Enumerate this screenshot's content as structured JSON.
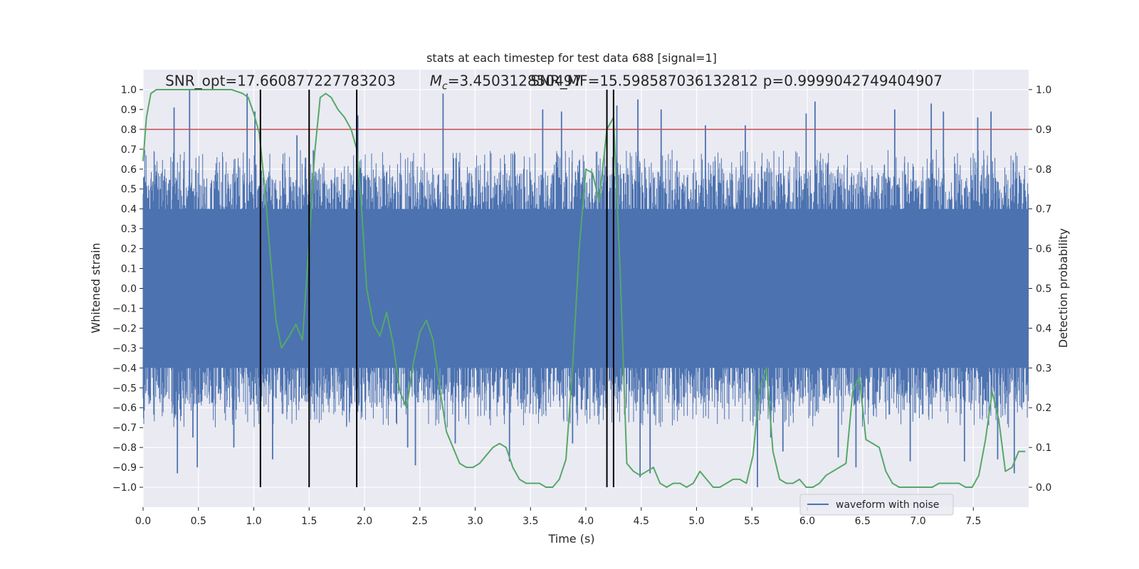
{
  "chart_data": {
    "type": "line",
    "title": "stats at each timestep for test data 688 [signal=1]",
    "xlabel": "Time (s)",
    "ylabel": "Whitened strain",
    "y2label": "Detection probability",
    "xlim": [
      0.0,
      8.0
    ],
    "ylim": [
      -1.1,
      1.1
    ],
    "y2lim": [
      -0.05,
      1.05
    ],
    "x_ticks": [
      0.0,
      0.5,
      1.0,
      1.5,
      2.0,
      2.5,
      3.0,
      3.5,
      4.0,
      4.5,
      5.0,
      5.5,
      6.0,
      6.5,
      7.0,
      7.5
    ],
    "x_tick_labels": [
      "0.0",
      "0.5",
      "1.0",
      "1.5",
      "2.0",
      "2.5",
      "3.0",
      "3.5",
      "4.0",
      "4.5",
      "5.0",
      "5.5",
      "6.0",
      "6.5",
      "7.0",
      "7.5"
    ],
    "y_ticks": [
      1.0,
      0.9,
      0.8,
      0.7,
      0.6,
      0.5,
      0.4,
      0.3,
      0.2,
      0.1,
      0.0,
      -0.1,
      -0.2,
      -0.3,
      -0.4,
      -0.5,
      -0.6,
      -0.7,
      -0.8,
      -0.9,
      -1.0
    ],
    "y_tick_labels": [
      "1.0",
      "0.9",
      "0.8",
      "0.7",
      "0.6",
      "0.5",
      "0.4",
      "0.3",
      "0.2",
      "0.1",
      "0.0",
      "−0.1",
      "−0.2",
      "−0.3",
      "−0.4",
      "−0.5",
      "−0.6",
      "−0.7",
      "−0.8",
      "−0.9",
      "−1.0"
    ],
    "y2_ticks": [
      1.0,
      0.9,
      0.8,
      0.7,
      0.6,
      0.5,
      0.4,
      0.3,
      0.2,
      0.1,
      0.0
    ],
    "y2_tick_labels": [
      "1.0",
      "0.9",
      "0.8",
      "0.7",
      "0.6",
      "0.5",
      "0.4",
      "0.3",
      "0.2",
      "0.1",
      "0.0"
    ],
    "grid": true,
    "legend": {
      "placement": "lower-right",
      "entries": [
        "waveform with noise"
      ]
    },
    "threshold": {
      "axis": "y2",
      "value": 0.9,
      "color": "#c44e52"
    },
    "vlines": [
      1.06,
      1.5,
      1.93,
      4.19,
      4.25
    ],
    "vline_range": [
      -1.0,
      1.0
    ],
    "annotations": [
      {
        "text": "SNR_opt=17.660877227783203",
        "x": 0.2,
        "y": 1.02
      },
      {
        "text": "=3.450312850497",
        "x": 2.59,
        "y": 1.02,
        "math_prefix": "M",
        "math_sub": "c"
      },
      {
        "text": "SNR_MF=15.598587036132812",
        "x": 3.5,
        "y": 1.02
      },
      {
        "text": "p=0.9999042749404907",
        "x": 5.6,
        "y": 1.02
      }
    ],
    "series": [
      {
        "name": "waveform with noise",
        "axis": "y",
        "color": "#4c72b0",
        "style": "dense-noise",
        "duration": 8.0,
        "dense_band": [
          -0.4,
          0.4
        ],
        "typical_spike_range": [
          -0.7,
          0.7
        ],
        "max": 1.0,
        "min": -1.0,
        "spikes": [
          [
            0.28,
            0.91
          ],
          [
            0.42,
            1.0
          ],
          [
            0.45,
            -0.75
          ],
          [
            0.31,
            -0.93
          ],
          [
            0.49,
            -0.9
          ],
          [
            0.82,
            -0.8
          ],
          [
            0.94,
            0.98
          ],
          [
            1.01,
            0.89
          ],
          [
            1.17,
            -0.86
          ],
          [
            1.39,
            0.77
          ],
          [
            1.94,
            0.87
          ],
          [
            2.39,
            -0.8
          ],
          [
            2.46,
            -0.89
          ],
          [
            2.71,
            0.98
          ],
          [
            2.82,
            -0.78
          ],
          [
            3.31,
            -0.87
          ],
          [
            3.61,
            0.9
          ],
          [
            3.78,
            0.89
          ],
          [
            3.88,
            -0.78
          ],
          [
            4.28,
            0.92
          ],
          [
            4.47,
            0.95
          ],
          [
            4.49,
            -0.95
          ],
          [
            4.58,
            -0.93
          ],
          [
            4.68,
            0.9
          ],
          [
            5.08,
            0.82
          ],
          [
            5.44,
            0.82
          ],
          [
            5.55,
            -1.0
          ],
          [
            5.67,
            -0.75
          ],
          [
            5.78,
            -0.82
          ],
          [
            5.99,
            0.88
          ],
          [
            6.07,
            0.94
          ],
          [
            6.28,
            -0.85
          ],
          [
            6.44,
            -0.9
          ],
          [
            6.79,
            0.9
          ],
          [
            6.93,
            -0.87
          ],
          [
            7.12,
            0.93
          ],
          [
            7.23,
            0.89
          ],
          [
            7.42,
            -0.87
          ],
          [
            7.54,
            0.86
          ],
          [
            7.66,
            0.89
          ],
          [
            7.72,
            -0.86
          ],
          [
            7.87,
            -0.93
          ]
        ]
      },
      {
        "name": "",
        "axis": "y2",
        "color": "#55a868",
        "x": [
          0.0,
          0.03,
          0.07,
          0.12,
          0.2,
          0.3,
          0.4,
          0.5,
          0.6,
          0.7,
          0.8,
          0.9,
          0.95,
          1.0,
          1.05,
          1.1,
          1.15,
          1.2,
          1.25,
          1.32,
          1.38,
          1.44,
          1.5,
          1.55,
          1.6,
          1.65,
          1.7,
          1.76,
          1.82,
          1.88,
          1.93,
          1.97,
          2.02,
          2.08,
          2.14,
          2.2,
          2.26,
          2.32,
          2.38,
          2.44,
          2.5,
          2.56,
          2.62,
          2.68,
          2.74,
          2.8,
          2.86,
          2.92,
          2.98,
          3.04,
          3.1,
          3.16,
          3.22,
          3.28,
          3.34,
          3.4,
          3.46,
          3.52,
          3.58,
          3.64,
          3.7,
          3.76,
          3.82,
          3.88,
          3.94,
          4.0,
          4.06,
          4.12,
          4.19,
          4.25,
          4.31,
          4.37,
          4.43,
          4.49,
          4.55,
          4.61,
          4.67,
          4.73,
          4.79,
          4.85,
          4.91,
          4.97,
          5.03,
          5.09,
          5.15,
          5.21,
          5.27,
          5.33,
          5.39,
          5.45,
          5.51,
          5.57,
          5.63,
          5.69,
          5.75,
          5.81,
          5.87,
          5.93,
          5.99,
          6.05,
          6.11,
          6.17,
          6.23,
          6.29,
          6.35,
          6.41,
          6.47,
          6.53,
          6.59,
          6.65,
          6.71,
          6.77,
          6.83,
          6.89,
          6.95,
          7.01,
          7.07,
          7.13,
          7.19,
          7.25,
          7.31,
          7.37,
          7.43,
          7.49,
          7.55,
          7.61,
          7.67,
          7.73,
          7.79,
          7.85,
          7.91,
          7.97
        ],
        "values": [
          0.82,
          0.93,
          0.99,
          1.0,
          1.0,
          1.0,
          1.0,
          1.0,
          1.0,
          1.0,
          1.0,
          0.99,
          0.98,
          0.94,
          0.89,
          0.75,
          0.58,
          0.42,
          0.35,
          0.38,
          0.41,
          0.37,
          0.62,
          0.84,
          0.98,
          0.99,
          0.98,
          0.95,
          0.93,
          0.9,
          0.85,
          0.72,
          0.5,
          0.41,
          0.38,
          0.44,
          0.36,
          0.24,
          0.2,
          0.31,
          0.39,
          0.42,
          0.37,
          0.25,
          0.14,
          0.1,
          0.06,
          0.05,
          0.05,
          0.06,
          0.08,
          0.1,
          0.11,
          0.1,
          0.05,
          0.02,
          0.01,
          0.01,
          0.01,
          0.0,
          0.0,
          0.02,
          0.07,
          0.3,
          0.6,
          0.8,
          0.79,
          0.72,
          0.9,
          0.93,
          0.54,
          0.06,
          0.04,
          0.03,
          0.04,
          0.05,
          0.01,
          0.0,
          0.01,
          0.01,
          0.0,
          0.01,
          0.04,
          0.02,
          0.0,
          0.0,
          0.01,
          0.02,
          0.02,
          0.01,
          0.08,
          0.25,
          0.3,
          0.09,
          0.02,
          0.01,
          0.01,
          0.02,
          0.0,
          0.0,
          0.01,
          0.03,
          0.04,
          0.05,
          0.06,
          0.24,
          0.28,
          0.12,
          0.11,
          0.1,
          0.04,
          0.01,
          0.0,
          0.0,
          0.0,
          0.0,
          0.0,
          0.0,
          0.01,
          0.01,
          0.01,
          0.01,
          0.0,
          0.0,
          0.03,
          0.12,
          0.24,
          0.17,
          0.04,
          0.05,
          0.09,
          0.09
        ]
      }
    ]
  }
}
